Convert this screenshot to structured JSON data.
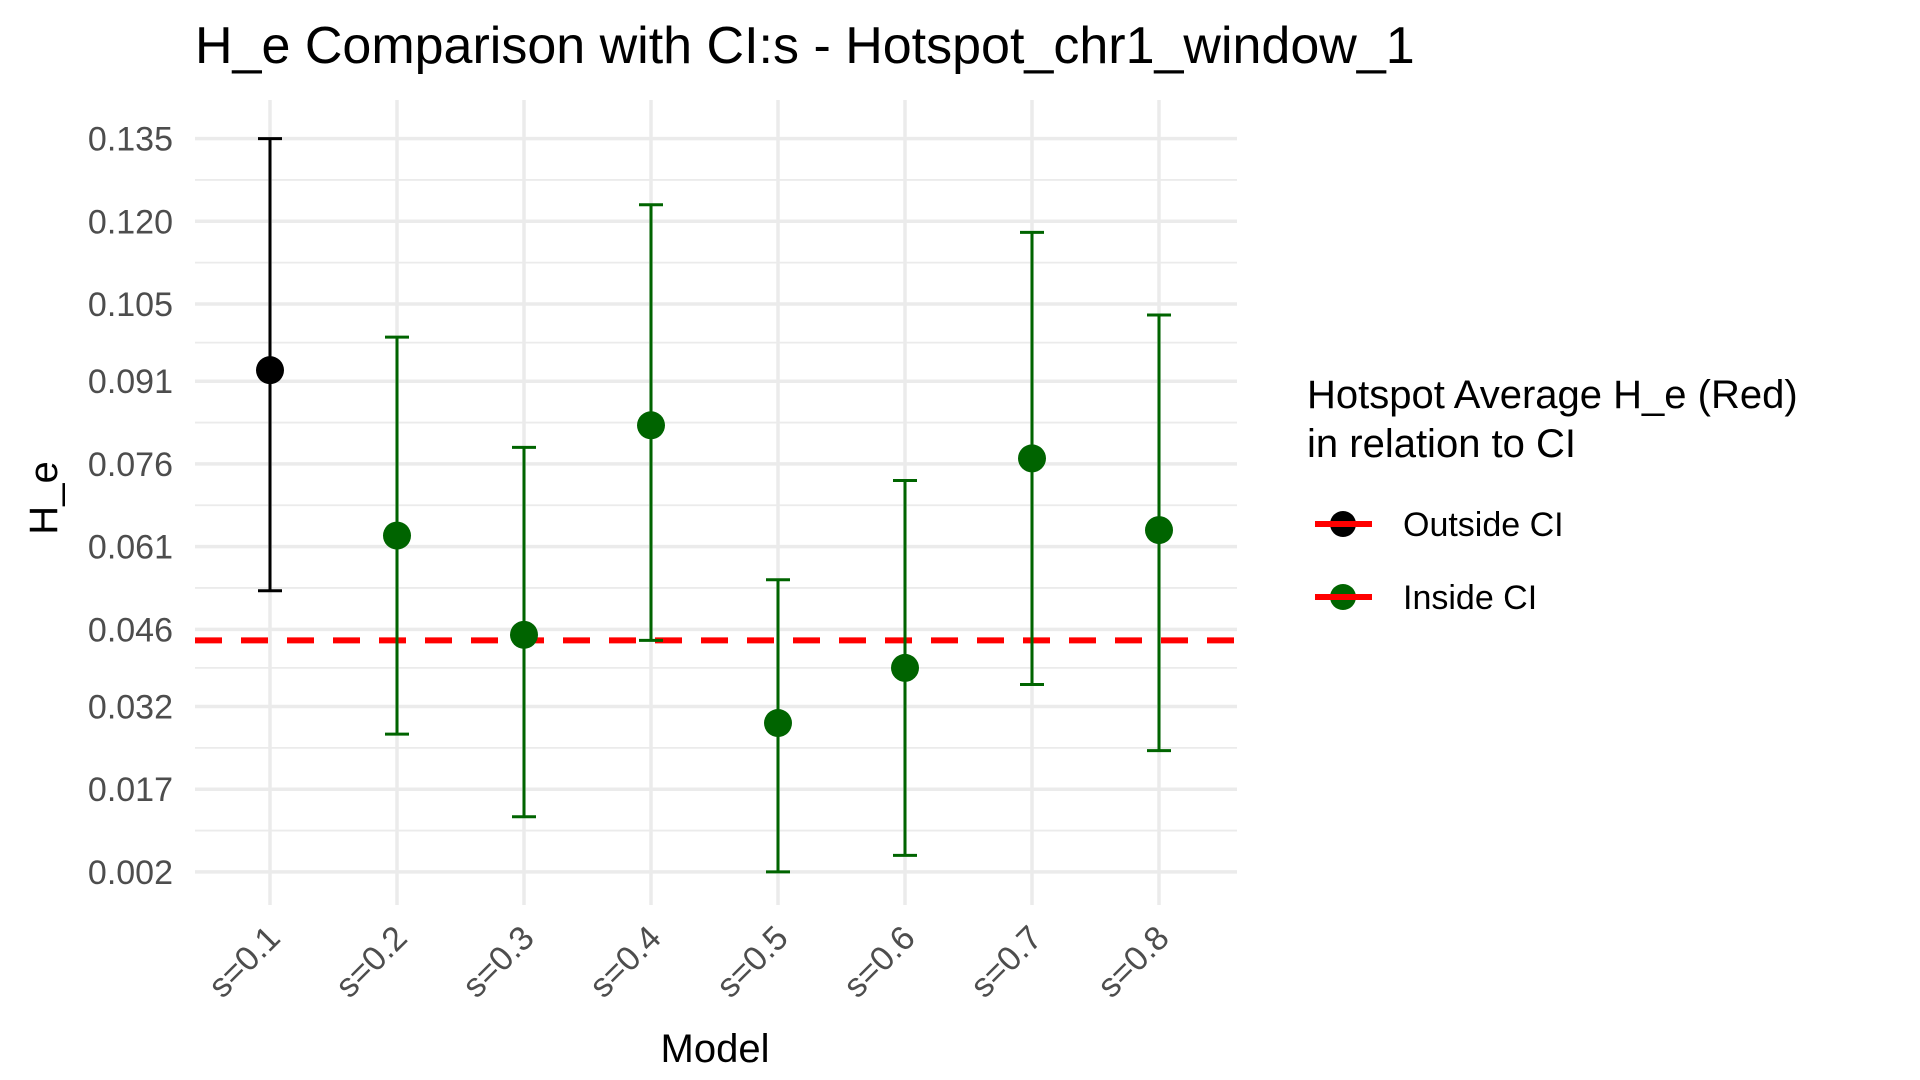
{
  "chart_data": {
    "type": "scatter",
    "title": "H_e Comparison with CI:s -  Hotspot_chr1_window_1",
    "xlabel": "Model",
    "ylabel": "H_e",
    "categories": [
      "s=0.1",
      "s=0.2",
      "s=0.3",
      "s=0.4",
      "s=0.5",
      "s=0.6",
      "s=0.7",
      "s=0.8"
    ],
    "y_ticks": [
      "0.002",
      "0.017",
      "0.032",
      "0.046",
      "0.061",
      "0.076",
      "0.091",
      "0.105",
      "0.120",
      "0.135"
    ],
    "y_tick_values": [
      0.002,
      0.017,
      0.032,
      0.046,
      0.061,
      0.076,
      0.091,
      0.105,
      0.12,
      0.135
    ],
    "ylim": [
      -0.004,
      0.142
    ],
    "grid": true,
    "points": [
      {
        "category": "s=0.1",
        "y": 0.093,
        "ci_low": 0.053,
        "ci_high": 0.135,
        "status": "Outside CI"
      },
      {
        "category": "s=0.2",
        "y": 0.063,
        "ci_low": 0.027,
        "ci_high": 0.099,
        "status": "Inside CI"
      },
      {
        "category": "s=0.3",
        "y": 0.045,
        "ci_low": 0.012,
        "ci_high": 0.079,
        "status": "Inside CI"
      },
      {
        "category": "s=0.4",
        "y": 0.083,
        "ci_low": 0.044,
        "ci_high": 0.123,
        "status": "Inside CI"
      },
      {
        "category": "s=0.5",
        "y": 0.029,
        "ci_low": 0.002,
        "ci_high": 0.055,
        "status": "Inside CI"
      },
      {
        "category": "s=0.6",
        "y": 0.039,
        "ci_low": 0.005,
        "ci_high": 0.073,
        "status": "Inside CI"
      },
      {
        "category": "s=0.7",
        "y": 0.077,
        "ci_low": 0.036,
        "ci_high": 0.118,
        "status": "Inside CI"
      },
      {
        "category": "s=0.8",
        "y": 0.064,
        "ci_low": 0.024,
        "ci_high": 0.103,
        "status": "Inside CI"
      }
    ],
    "reference_line": {
      "y": 0.044,
      "color": "#ff0000",
      "style": "dashed"
    },
    "legend": {
      "title_line1": "Hotspot Average H_e (Red)",
      "title_line2": "in relation to CI",
      "placement": "right",
      "entries": [
        {
          "label": "Outside CI",
          "color": "#000000"
        },
        {
          "label": "Inside CI",
          "color": "#006400"
        }
      ]
    },
    "colors": {
      "outside": "#000000",
      "inside": "#006400",
      "reference": "#ff0000",
      "grid": "#ebebeb"
    }
  }
}
